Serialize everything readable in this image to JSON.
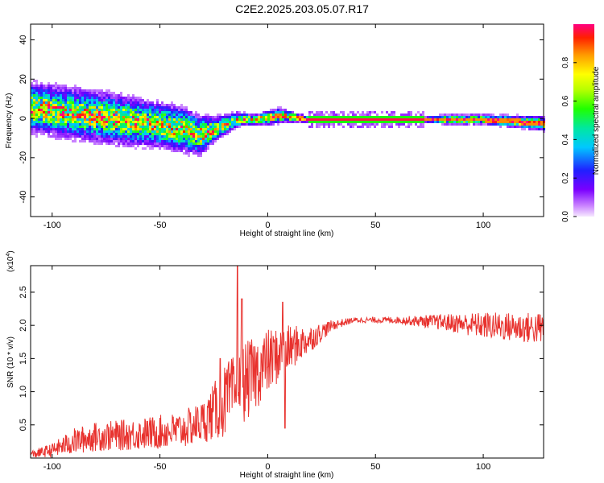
{
  "title": "C2E2.2025.203.05.07.R17",
  "chart_data": [
    {
      "type": "heatmap",
      "xlabel": "Height of straight line (km)",
      "ylabel": "Frequency (Hz)",
      "xlim": [
        -110,
        128
      ],
      "ylim": [
        -50,
        48
      ],
      "x_ticks": [
        -100,
        -50,
        0,
        50,
        100
      ],
      "y_ticks": [
        -40,
        -20,
        0,
        20,
        40
      ],
      "colorbar": {
        "label": "Normalized spectral amplitude",
        "range": [
          0,
          1
        ],
        "ticks": [
          0.0,
          0.2,
          0.4,
          0.6,
          0.8
        ],
        "tick_labels": [
          "0.0",
          "0.2",
          "0.4",
          "0.6",
          "0.8"
        ]
      },
      "ridge": {
        "description_points_x": [
          -110,
          -90,
          -70,
          -55,
          -40,
          -32,
          -25,
          -15,
          -5,
          0,
          5,
          20,
          50,
          72,
          80,
          100,
          128
        ],
        "frequency": [
          6,
          3,
          0,
          -2,
          -5,
          -8,
          -5,
          0,
          0,
          1,
          2,
          0,
          0,
          0,
          0,
          0,
          -2
        ],
        "spread": [
          10,
          10,
          10,
          9,
          9,
          8,
          5,
          3,
          2,
          3,
          3,
          1,
          1,
          1,
          2,
          2,
          3
        ]
      }
    },
    {
      "type": "line",
      "xlabel": "Height of straight line (km)",
      "ylabel": "SNR (10 * v/v)",
      "yscale_label": "(x10",
      "yscale_exp": "4",
      "xlim": [
        -110,
        128
      ],
      "ylim": [
        0,
        2.9
      ],
      "x_ticks": [
        -100,
        -50,
        0,
        50,
        100
      ],
      "y_ticks": [
        0.5,
        1.0,
        1.5,
        2.0,
        2.5
      ],
      "y_tick_labels": [
        "0.5",
        "1.0",
        "1.5",
        "2.0",
        "2.5"
      ],
      "series": [
        {
          "color": "#e8322e",
          "trend_x": [
            -110,
            -100,
            -90,
            -80,
            -60,
            -40,
            -30,
            -20,
            -10,
            0,
            10,
            20,
            30,
            40,
            60,
            80,
            100,
            128
          ],
          "trend_y": [
            0.05,
            0.12,
            0.25,
            0.32,
            0.36,
            0.42,
            0.55,
            0.85,
            1.15,
            1.45,
            1.65,
            1.8,
            2.0,
            2.08,
            2.08,
            2.05,
            2.0,
            1.95
          ],
          "noise_amp": [
            0.06,
            0.1,
            0.2,
            0.22,
            0.24,
            0.28,
            0.32,
            0.55,
            0.6,
            0.5,
            0.35,
            0.2,
            0.08,
            0.04,
            0.05,
            0.12,
            0.2,
            0.25
          ],
          "spikes": [
            {
              "x": -22,
              "y": 1.5
            },
            {
              "x": -14,
              "y": 2.9
            },
            {
              "x": -12,
              "y": 2.4
            },
            {
              "x": 7,
              "y": 2.35
            },
            {
              "x": 8,
              "y": 0.45
            }
          ]
        }
      ]
    }
  ]
}
